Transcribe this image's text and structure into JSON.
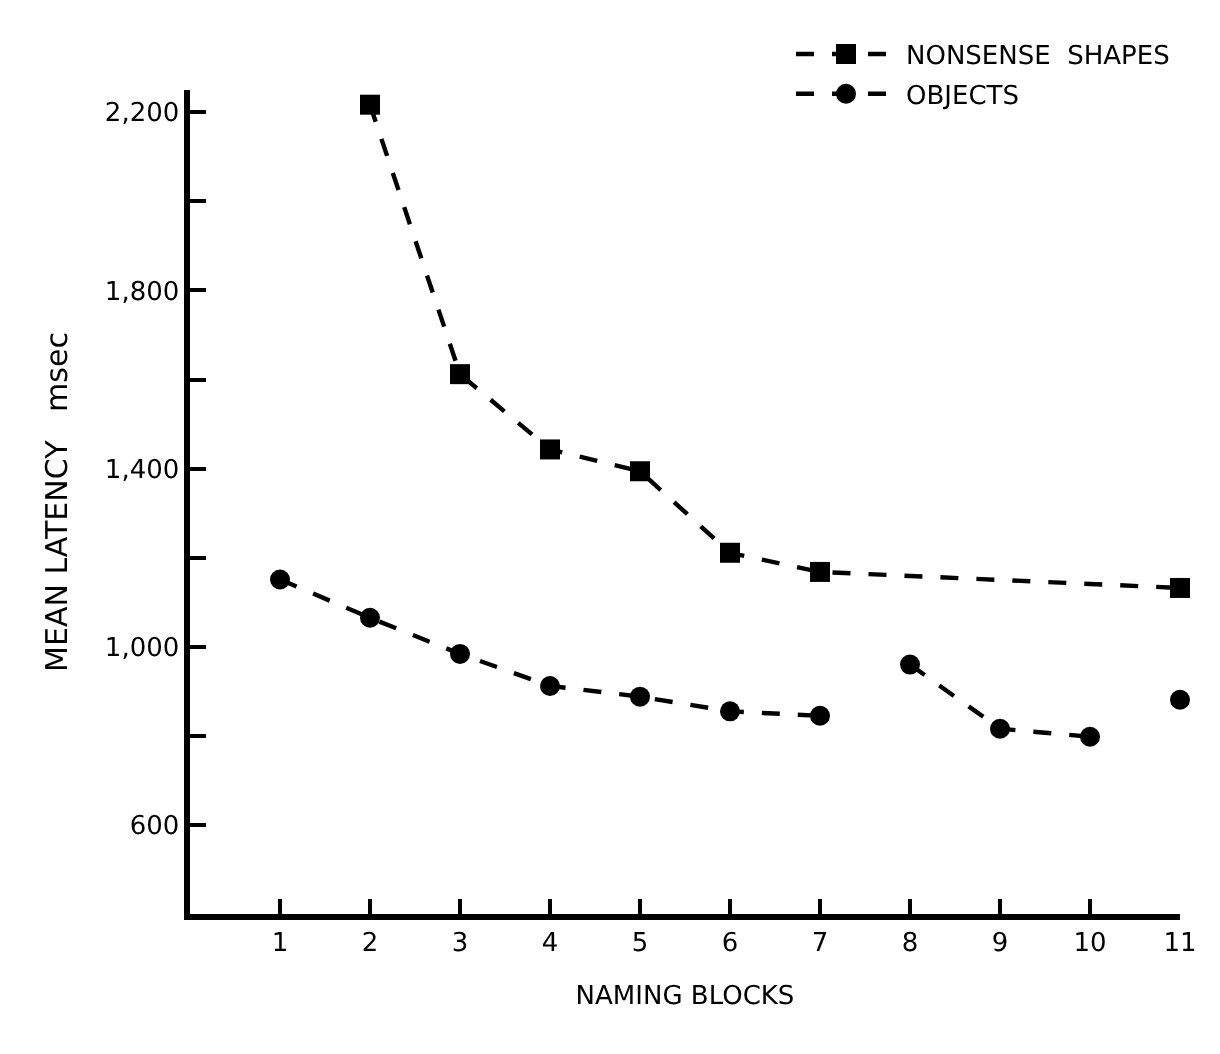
{
  "chart_data": {
    "type": "line",
    "xlabel": "NAMING BLOCKS",
    "ylabel": "MEAN LATENCY   msec",
    "xlim": [
      0,
      11
    ],
    "xticks": [
      1,
      2,
      3,
      4,
      5,
      6,
      7,
      8,
      9,
      10,
      11
    ],
    "ylim": [
      400,
      2250
    ],
    "yticks": [
      {
        "value": 600,
        "label": "600"
      },
      {
        "value": 800,
        "label": null
      },
      {
        "value": 1000,
        "label": "1,000"
      },
      {
        "value": 1200,
        "label": null
      },
      {
        "value": 1400,
        "label": "1,400"
      },
      {
        "value": 1600,
        "label": null
      },
      {
        "value": 1800,
        "label": "1,800"
      },
      {
        "value": 2000,
        "label": null
      },
      {
        "value": 2200,
        "label": "2,200"
      }
    ],
    "legend": "top right",
    "line_style": "dashed",
    "series": [
      {
        "name": "NONSENSE  SHAPES",
        "color": "#000000",
        "marker": "square",
        "x": [
          2,
          3,
          4,
          5,
          6,
          7,
          11
        ],
        "values": [
          2217,
          1612,
          1443,
          1394,
          1211,
          1168,
          1132
        ]
      },
      {
        "name": "OBJECTS",
        "color": "#000000",
        "marker": "circle",
        "x": [
          1,
          2,
          3,
          4,
          5,
          6,
          7,
          7.5,
          8,
          9,
          10,
          10.5,
          11
        ],
        "values": [
          1151,
          1065,
          984,
          912,
          888,
          855,
          845,
          null,
          960,
          816,
          798,
          null,
          881
        ]
      }
    ]
  }
}
